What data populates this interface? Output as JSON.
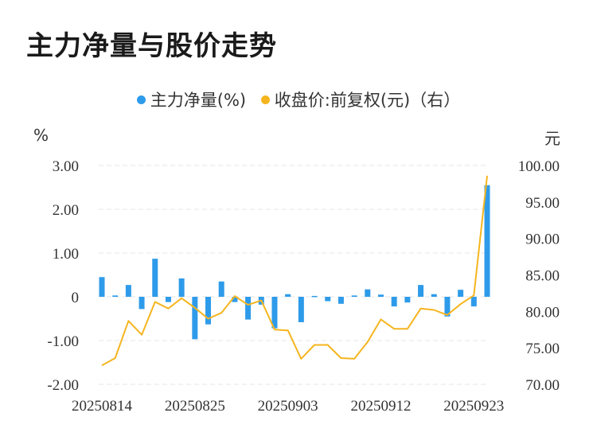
{
  "title": "主力净量与股价走势",
  "legend": [
    {
      "label": "主力净量(%)",
      "color": "#2e9bea"
    },
    {
      "label": "收盘价:前复权(元)（右）",
      "color": "#f5b51f"
    }
  ],
  "units": {
    "left": "%",
    "right": "元"
  },
  "chart_data": {
    "type": "bar+line",
    "x": [
      "20250814",
      "20250815",
      "20250818",
      "20250819",
      "20250820",
      "20250821",
      "20250822",
      "20250825",
      "20250826",
      "20250827",
      "20250828",
      "20250829",
      "20250901",
      "20250902",
      "20250903",
      "20250904",
      "20250905",
      "20250908",
      "20250909",
      "20250910",
      "20250911",
      "20250912",
      "20250915",
      "20250916",
      "20250917",
      "20250918",
      "20250919",
      "20250922",
      "20250923",
      "20250924"
    ],
    "x_tick_labels": [
      "20250814",
      "20250825",
      "20250903",
      "20250912",
      "20250923"
    ],
    "series": [
      {
        "name": "主力净量(%)",
        "type": "bar",
        "axis": "left",
        "values": [
          0.45,
          0.03,
          0.27,
          -0.28,
          0.87,
          -0.12,
          0.42,
          -0.97,
          -0.63,
          0.35,
          -0.12,
          -0.52,
          -0.18,
          -0.72,
          0.06,
          -0.58,
          0.02,
          -0.1,
          -0.16,
          0.03,
          0.17,
          0.05,
          -0.22,
          -0.13,
          0.27,
          0.06,
          -0.45,
          0.16,
          -0.22,
          2.55
        ]
      },
      {
        "name": "收盘价:前复权(元)（右）",
        "type": "line",
        "axis": "right",
        "values": [
          72.6,
          73.6,
          78.7,
          76.8,
          81.3,
          80.4,
          81.8,
          80.5,
          79.0,
          79.8,
          82.1,
          80.9,
          81.5,
          77.5,
          77.4,
          73.5,
          75.4,
          75.4,
          73.6,
          73.5,
          75.8,
          78.9,
          77.6,
          77.6,
          80.4,
          80.2,
          79.5,
          81.0,
          82.2,
          98.6
        ]
      }
    ],
    "y_left": {
      "ticks": [
        "3.00",
        "2.00",
        "1.00",
        "0",
        "-1.00",
        "-2.00"
      ],
      "ylim": [
        -2,
        3
      ]
    },
    "y_right": {
      "ticks": [
        "100.00",
        "95.00",
        "90.00",
        "85.00",
        "80.00",
        "75.00",
        "70.00"
      ],
      "ylim": [
        70,
        100
      ]
    },
    "grid": true,
    "legend_position": "top"
  }
}
